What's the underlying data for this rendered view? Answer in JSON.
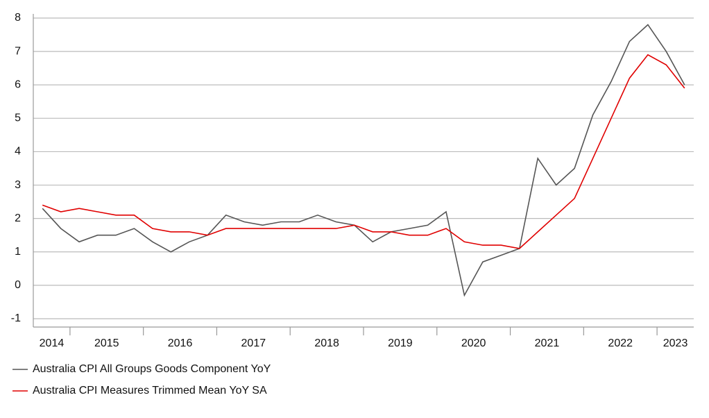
{
  "chart_data": {
    "type": "line",
    "x": [
      2014.625,
      2014.875,
      2015.125,
      2015.375,
      2015.625,
      2015.875,
      2016.125,
      2016.375,
      2016.625,
      2016.875,
      2017.125,
      2017.375,
      2017.625,
      2017.875,
      2018.125,
      2018.375,
      2018.625,
      2018.875,
      2019.125,
      2019.375,
      2019.625,
      2019.875,
      2020.125,
      2020.375,
      2020.625,
      2020.875,
      2021.125,
      2021.375,
      2021.625,
      2021.875,
      2022.125,
      2022.375,
      2022.625,
      2022.875,
      2023.125,
      2023.375
    ],
    "series": [
      {
        "name": "Australia CPI All Groups Goods Component YoY",
        "color": "#555555",
        "values": [
          2.3,
          1.7,
          1.3,
          1.5,
          1.5,
          1.7,
          1.3,
          1.0,
          1.3,
          1.5,
          2.1,
          1.9,
          1.8,
          1.9,
          1.9,
          2.1,
          1.9,
          1.8,
          1.3,
          1.6,
          1.7,
          1.8,
          2.2,
          -0.3,
          0.7,
          0.9,
          1.1,
          3.8,
          3.0,
          3.5,
          5.1,
          6.1,
          7.3,
          7.8,
          7.0,
          6.0
        ]
      },
      {
        "name": "Australia CPI Measures Trimmed Mean YoY SA",
        "color": "#e00000",
        "values": [
          2.4,
          2.2,
          2.3,
          2.2,
          2.1,
          2.1,
          1.7,
          1.6,
          1.6,
          1.5,
          1.7,
          1.7,
          1.7,
          1.7,
          1.7,
          1.7,
          1.7,
          1.8,
          1.6,
          1.6,
          1.5,
          1.5,
          1.7,
          1.3,
          1.2,
          1.2,
          1.1,
          1.6,
          2.1,
          2.6,
          3.8,
          5.0,
          6.2,
          6.9,
          6.6,
          5.9
        ]
      }
    ],
    "xlim": [
      2014.5,
      2023.5
    ],
    "xticks": [
      {
        "value": 2014.75,
        "label": "2014"
      },
      {
        "value": 2015.5,
        "label": "2015"
      },
      {
        "value": 2016.5,
        "label": "2016"
      },
      {
        "value": 2017.5,
        "label": "2017"
      },
      {
        "value": 2018.5,
        "label": "2018"
      },
      {
        "value": 2019.5,
        "label": "2019"
      },
      {
        "value": 2020.5,
        "label": "2020"
      },
      {
        "value": 2021.5,
        "label": "2021"
      },
      {
        "value": 2022.5,
        "label": "2022"
      },
      {
        "value": 2023.25,
        "label": "2023"
      }
    ],
    "xminor": [
      2015,
      2016,
      2017,
      2018,
      2019,
      2020,
      2021,
      2022,
      2023
    ],
    "ylim": [
      -1.25,
      8
    ],
    "yticks": [
      -1,
      0,
      1,
      2,
      3,
      4,
      5,
      6,
      7,
      8
    ],
    "grid": true
  }
}
